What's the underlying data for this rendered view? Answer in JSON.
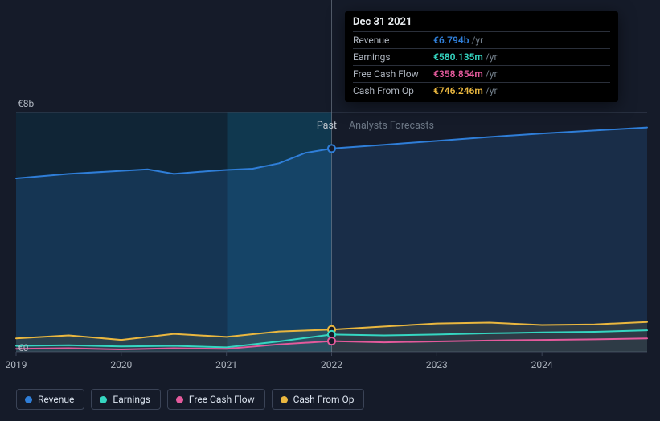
{
  "chart": {
    "type": "area-multi-line",
    "background_color": "#151b29",
    "past_shade_color": "rgba(12,45,66,0.55)",
    "divider_color": "#7a8592",
    "grid_color": "#3a4356",
    "text_color": "#aeb5bf",
    "x": {
      "domain": [
        2019,
        2025
      ],
      "ticks": [
        2019,
        2020,
        2021,
        2022,
        2023,
        2024
      ],
      "tick_labels": [
        "2019",
        "2020",
        "2021",
        "2022",
        "2023",
        "2024"
      ]
    },
    "y": {
      "domain": [
        0,
        8
      ],
      "ticks": [
        0,
        8
      ],
      "tick_labels": [
        "€0",
        "€8b"
      ]
    },
    "sections": {
      "past_label": "Past",
      "forecast_label": "Analysts Forecasts",
      "divider_x": 2022
    },
    "current_marker_x": 2022,
    "series": [
      {
        "key": "revenue",
        "label": "Revenue",
        "color": "#2f7ed8",
        "fill_opacity": 0.18,
        "points": [
          [
            2019.0,
            5.8
          ],
          [
            2019.5,
            5.95
          ],
          [
            2020.0,
            6.05
          ],
          [
            2020.25,
            6.1
          ],
          [
            2020.5,
            5.95
          ],
          [
            2020.75,
            6.02
          ],
          [
            2021.0,
            6.08
          ],
          [
            2021.25,
            6.12
          ],
          [
            2021.5,
            6.3
          ],
          [
            2021.75,
            6.65
          ],
          [
            2022.0,
            6.794
          ],
          [
            2022.5,
            6.92
          ],
          [
            2023.0,
            7.05
          ],
          [
            2023.5,
            7.18
          ],
          [
            2024.0,
            7.3
          ],
          [
            2024.5,
            7.4
          ],
          [
            2025.0,
            7.5
          ]
        ]
      },
      {
        "key": "cash_from_op",
        "label": "Cash From Op",
        "color": "#eab73f",
        "fill_opacity": 0.1,
        "points": [
          [
            2019.0,
            0.45
          ],
          [
            2019.5,
            0.55
          ],
          [
            2020.0,
            0.4
          ],
          [
            2020.5,
            0.6
          ],
          [
            2021.0,
            0.5
          ],
          [
            2021.5,
            0.68
          ],
          [
            2022.0,
            0.746
          ],
          [
            2022.5,
            0.85
          ],
          [
            2023.0,
            0.95
          ],
          [
            2023.5,
            0.98
          ],
          [
            2024.0,
            0.9
          ],
          [
            2024.5,
            0.92
          ],
          [
            2025.0,
            1.0
          ]
        ]
      },
      {
        "key": "earnings",
        "label": "Earnings",
        "color": "#35d6c1",
        "fill_opacity": 0.0,
        "points": [
          [
            2019.0,
            0.2
          ],
          [
            2019.5,
            0.22
          ],
          [
            2020.0,
            0.18
          ],
          [
            2020.5,
            0.2
          ],
          [
            2021.0,
            0.15
          ],
          [
            2021.5,
            0.35
          ],
          [
            2022.0,
            0.58
          ],
          [
            2022.5,
            0.55
          ],
          [
            2023.0,
            0.58
          ],
          [
            2023.5,
            0.62
          ],
          [
            2024.0,
            0.65
          ],
          [
            2024.5,
            0.67
          ],
          [
            2025.0,
            0.72
          ]
        ]
      },
      {
        "key": "free_cash_flow",
        "label": "Free Cash Flow",
        "color": "#e45a9c",
        "fill_opacity": 0.0,
        "points": [
          [
            2019.0,
            0.1
          ],
          [
            2019.5,
            0.12
          ],
          [
            2020.0,
            0.08
          ],
          [
            2020.5,
            0.12
          ],
          [
            2021.0,
            0.1
          ],
          [
            2021.5,
            0.25
          ],
          [
            2022.0,
            0.359
          ],
          [
            2022.5,
            0.32
          ],
          [
            2023.0,
            0.35
          ],
          [
            2023.5,
            0.38
          ],
          [
            2024.0,
            0.4
          ],
          [
            2024.5,
            0.42
          ],
          [
            2025.0,
            0.45
          ]
        ]
      }
    ]
  },
  "tooltip": {
    "date": "Dec 31 2021",
    "unit": "/yr",
    "rows": [
      {
        "label": "Revenue",
        "value": "€6.794b",
        "color": "#2f7ed8"
      },
      {
        "label": "Earnings",
        "value": "€580.135m",
        "color": "#35d6c1"
      },
      {
        "label": "Free Cash Flow",
        "value": "€358.854m",
        "color": "#e45a9c"
      },
      {
        "label": "Cash From Op",
        "value": "€746.246m",
        "color": "#eab73f"
      }
    ]
  },
  "legend": [
    {
      "label": "Revenue",
      "color": "#2f7ed8"
    },
    {
      "label": "Earnings",
      "color": "#35d6c1"
    },
    {
      "label": "Free Cash Flow",
      "color": "#e45a9c"
    },
    {
      "label": "Cash From Op",
      "color": "#eab73f"
    }
  ]
}
